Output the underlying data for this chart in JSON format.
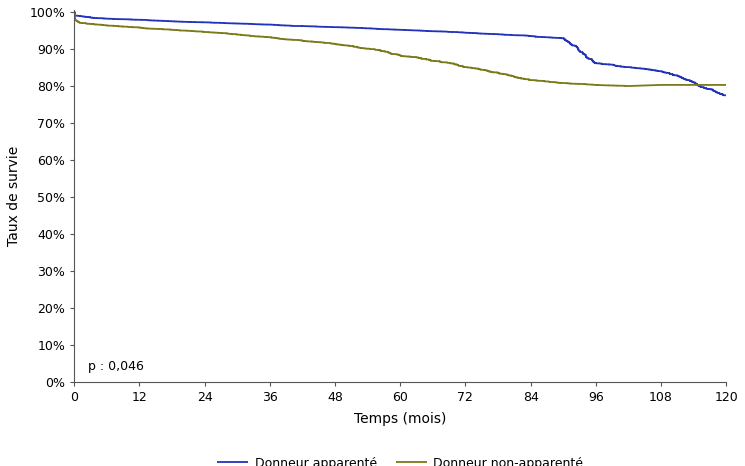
{
  "title": "",
  "xlabel": "Temps (mois)",
  "ylabel": "Taux de survie",
  "pvalue_text": "p : 0,046",
  "xlim": [
    0,
    120
  ],
  "ylim": [
    0.0,
    1.005
  ],
  "xticks": [
    0,
    12,
    24,
    36,
    48,
    60,
    72,
    84,
    96,
    108,
    120
  ],
  "yticks": [
    0.0,
    0.1,
    0.2,
    0.3,
    0.4,
    0.5,
    0.6,
    0.7,
    0.8,
    0.9,
    1.0
  ],
  "legend_labels": [
    "Donneur apparenté",
    "Donneur non-apparenté"
  ],
  "line1_color": "#2233bb",
  "line2_color": "#7a7a1a",
  "line_width": 1.3,
  "background_color": "#ffffff",
  "curve1_keypoints_x": [
    0,
    0.5,
    3,
    6,
    12,
    18,
    24,
    30,
    36,
    42,
    48,
    54,
    60,
    66,
    72,
    78,
    84,
    90,
    96,
    102,
    108,
    114,
    120
  ],
  "curve1_keypoints_y": [
    1.0,
    0.99,
    0.985,
    0.982,
    0.979,
    0.975,
    0.972,
    0.969,
    0.966,
    0.962,
    0.959,
    0.956,
    0.952,
    0.948,
    0.944,
    0.94,
    0.935,
    0.929,
    0.862,
    0.851,
    0.84,
    0.81,
    0.775
  ],
  "curve2_keypoints_x": [
    0,
    0.3,
    1,
    3,
    6,
    12,
    18,
    24,
    30,
    36,
    42,
    48,
    54,
    60,
    66,
    72,
    78,
    84,
    90,
    96,
    102,
    108,
    114,
    120
  ],
  "curve2_keypoints_y": [
    1.0,
    0.978,
    0.972,
    0.968,
    0.964,
    0.958,
    0.952,
    0.946,
    0.939,
    0.932,
    0.923,
    0.914,
    0.901,
    0.883,
    0.868,
    0.851,
    0.836,
    0.816,
    0.808,
    0.803,
    0.8,
    0.803,
    0.803,
    0.803
  ]
}
